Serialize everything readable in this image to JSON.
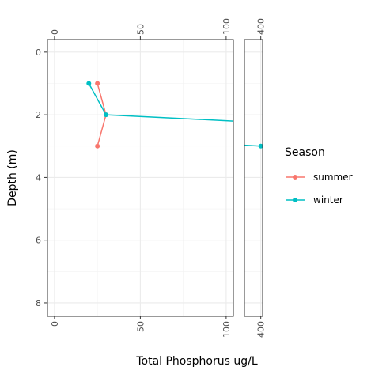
{
  "chart_data": {
    "type": "line",
    "x_label": "Total Phosphorus ug/L",
    "y_label": "Depth (m)",
    "ylim": [
      -0.4,
      8.43
    ],
    "y_reversed": true,
    "yticks": [
      0,
      2,
      4,
      6,
      8
    ],
    "y_minor": [
      1,
      3,
      5,
      7
    ],
    "panels": [
      {
        "xlim": [
          -4.1,
          104.2
        ],
        "xticks": [
          0,
          50,
          100
        ],
        "x_minor": [
          25,
          75
        ]
      },
      {
        "xlim": [
          389.3,
          401.2
        ],
        "xticks": [
          400
        ],
        "x_minor": []
      }
    ],
    "grid": true,
    "legend_title": "Season",
    "series": [
      {
        "name": "summer",
        "color": "#f8766d",
        "x": [
          25,
          30,
          25
        ],
        "values": [
          1,
          2,
          3
        ]
      },
      {
        "name": "winter",
        "color": "#00bfc4",
        "x": [
          20,
          30,
          400
        ],
        "values": [
          1,
          2,
          3
        ]
      }
    ]
  }
}
